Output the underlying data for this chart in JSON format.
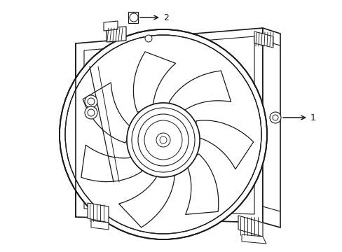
{
  "background_color": "#ffffff",
  "line_color": "#1a1a1a",
  "line_width": 1.0,
  "label_1_text": "1",
  "label_2_text": "2",
  "fig_width": 4.89,
  "fig_height": 3.6,
  "dpi": 100
}
